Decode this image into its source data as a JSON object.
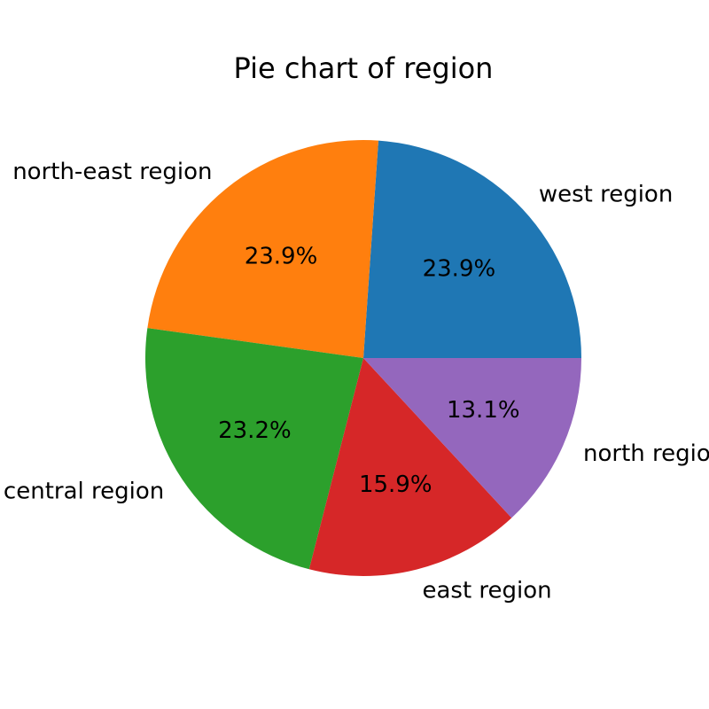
{
  "chart_data": {
    "type": "pie",
    "title": "Pie chart of region",
    "start_angle_deg": 0,
    "direction": "counterclockwise",
    "slices": [
      {
        "label": "west region",
        "value": 23.9,
        "pct_label": "23.9%",
        "color": "#1f77b4"
      },
      {
        "label": "north-east region",
        "value": 23.9,
        "pct_label": "23.9%",
        "color": "#ff7f0e"
      },
      {
        "label": "central region",
        "value": 23.2,
        "pct_label": "23.2%",
        "color": "#2ca02c"
      },
      {
        "label": "east region",
        "value": 15.9,
        "pct_label": "15.9%",
        "color": "#d62728"
      },
      {
        "label": "north region",
        "value": 13.1,
        "pct_label": "13.1%",
        "color": "#9467bd"
      }
    ]
  }
}
